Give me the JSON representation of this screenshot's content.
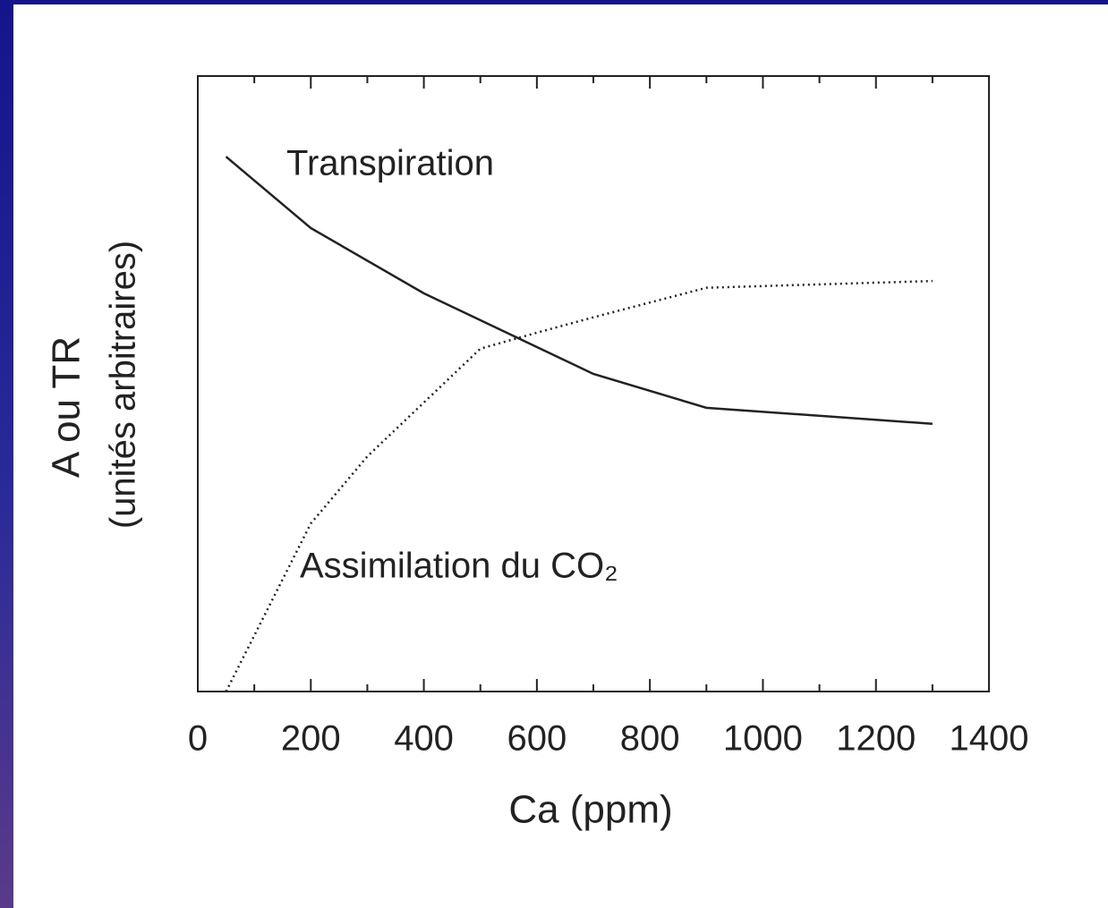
{
  "chart_data": {
    "type": "line",
    "x_label": "Ca (ppm)",
    "y_label": [
      "A ou TR",
      "(unités arbitraires)"
    ],
    "series": [
      {
        "name": "Transpiration",
        "color": "#222222",
        "style": "solid",
        "x": [
          50,
          200,
          400,
          700,
          900,
          1300
        ],
        "values": [
          86.9,
          75.3,
          64.7,
          51.6,
          46.1,
          43.5
        ]
      },
      {
        "name": "Assimilation du CO₂",
        "color": "#222222",
        "style": "dotted",
        "x": [
          50,
          200,
          300,
          500,
          600,
          700,
          900,
          1300
        ],
        "values": [
          0,
          27.3,
          38.2,
          55.7,
          58.3,
          60.8,
          65.6,
          66.7
        ]
      }
    ],
    "xlim": [
      0,
      1400
    ],
    "xticks": [
      0,
      200,
      400,
      600,
      800,
      1000,
      1200,
      1400
    ],
    "xminorticks": [
      100,
      300,
      500,
      700,
      900,
      1100,
      1300
    ],
    "ylim": [
      0,
      100
    ],
    "grid": false
  }
}
